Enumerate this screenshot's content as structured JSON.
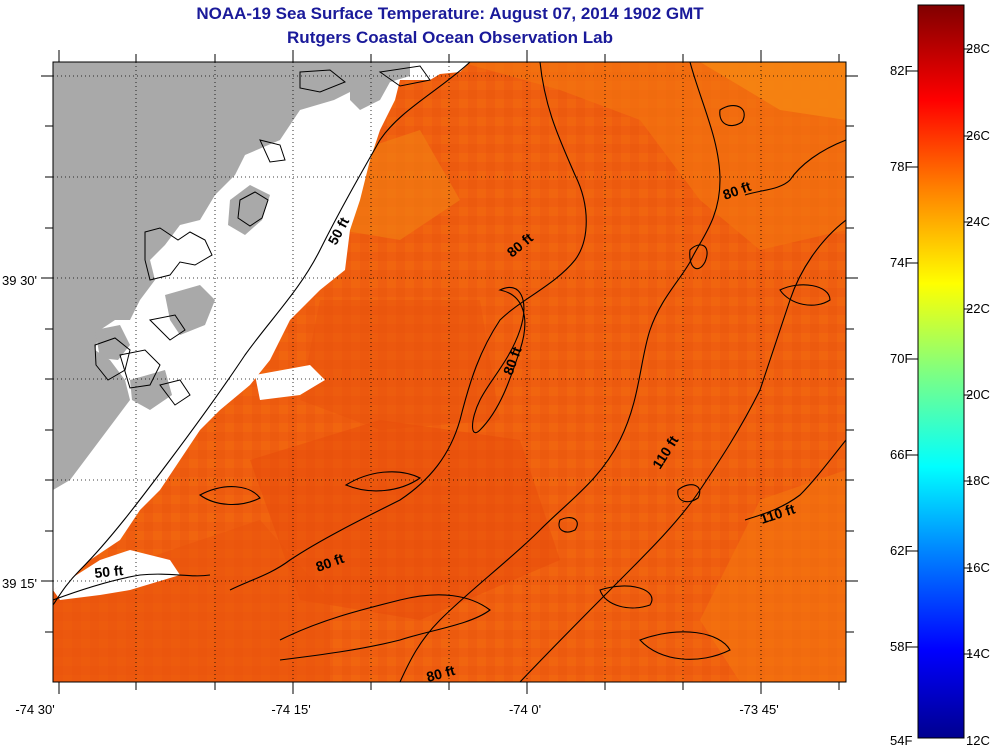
{
  "title": "NOAA-19 Sea Surface Temperature:  August 07, 2014 1902 GMT",
  "subtitle": "Rutgers Coastal Ocean Observation Lab",
  "map": {
    "lon_ticks": [
      "-74 30'",
      "-74 15'",
      "-74 0'",
      "-73 45'"
    ],
    "lat_ticks": [
      "39 30'",
      "39 15'"
    ],
    "colors": {
      "land": "#a9a9a9",
      "no_data": "#ffffff",
      "sst_main": "#f06010",
      "sst_warm": "#e84c0a",
      "sst_cool": "#f5800f",
      "contour": "#000000"
    },
    "contour_labels": {
      "c50a": "50 ft",
      "c50b": "50 ft",
      "c80a": "80 ft",
      "c80b": "80 ft",
      "c80c": "80 ft",
      "c80d": "80 ft",
      "c80e": "80 ft",
      "c110a": "110 ft",
      "c110b": "110 ft"
    }
  },
  "colorbar": {
    "f_labels": [
      "82F",
      "78F",
      "74F",
      "70F",
      "66F",
      "62F",
      "58F",
      "54F"
    ],
    "c_labels": [
      "28C",
      "26C",
      "24C",
      "22C",
      "20C",
      "18C",
      "16C",
      "14C",
      "12C"
    ]
  }
}
